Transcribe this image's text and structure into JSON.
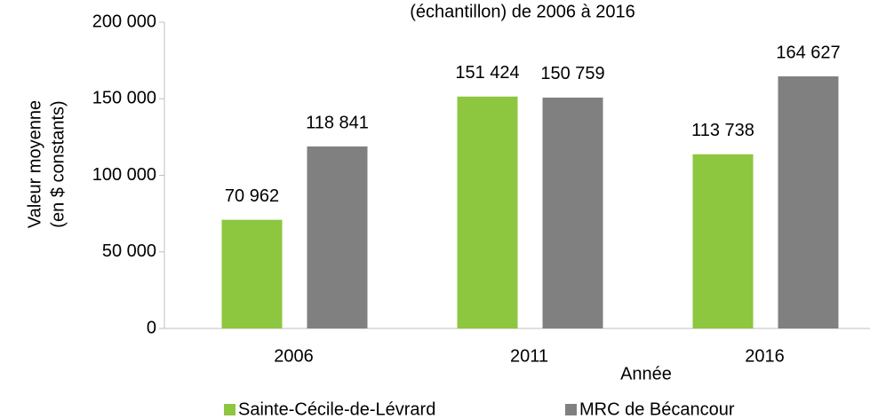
{
  "chart_data": {
    "type": "bar",
    "title": "(échantillon) de 2006 à 2016",
    "y_label": [
      "Valeur moyenne",
      "(en $ constants)"
    ],
    "x_label": "Année",
    "categories": [
      "2006",
      "2011",
      "2016"
    ],
    "series": [
      {
        "name": "Sainte-Cécile-de-Lévrard",
        "color": "#8dc63f",
        "values": [
          70962,
          151424,
          113738
        ],
        "value_labels": [
          "70 962",
          "151 424",
          "113 738"
        ]
      },
      {
        "name": "MRC de Bécancour",
        "color": "#808080",
        "values": [
          118841,
          150759,
          164627
        ],
        "value_labels": [
          "118 841",
          "150 759",
          "164 627"
        ]
      }
    ],
    "ylim": [
      0,
      200000
    ],
    "yticks": [
      0,
      {
        "value": 50000,
        "label": "50 000"
      },
      {
        "value": 100000,
        "label": "100 000"
      },
      {
        "value": 150000,
        "label": "150 000"
      },
      {
        "value": 200000,
        "label": "200 000"
      }
    ],
    "legend": "bottom"
  }
}
